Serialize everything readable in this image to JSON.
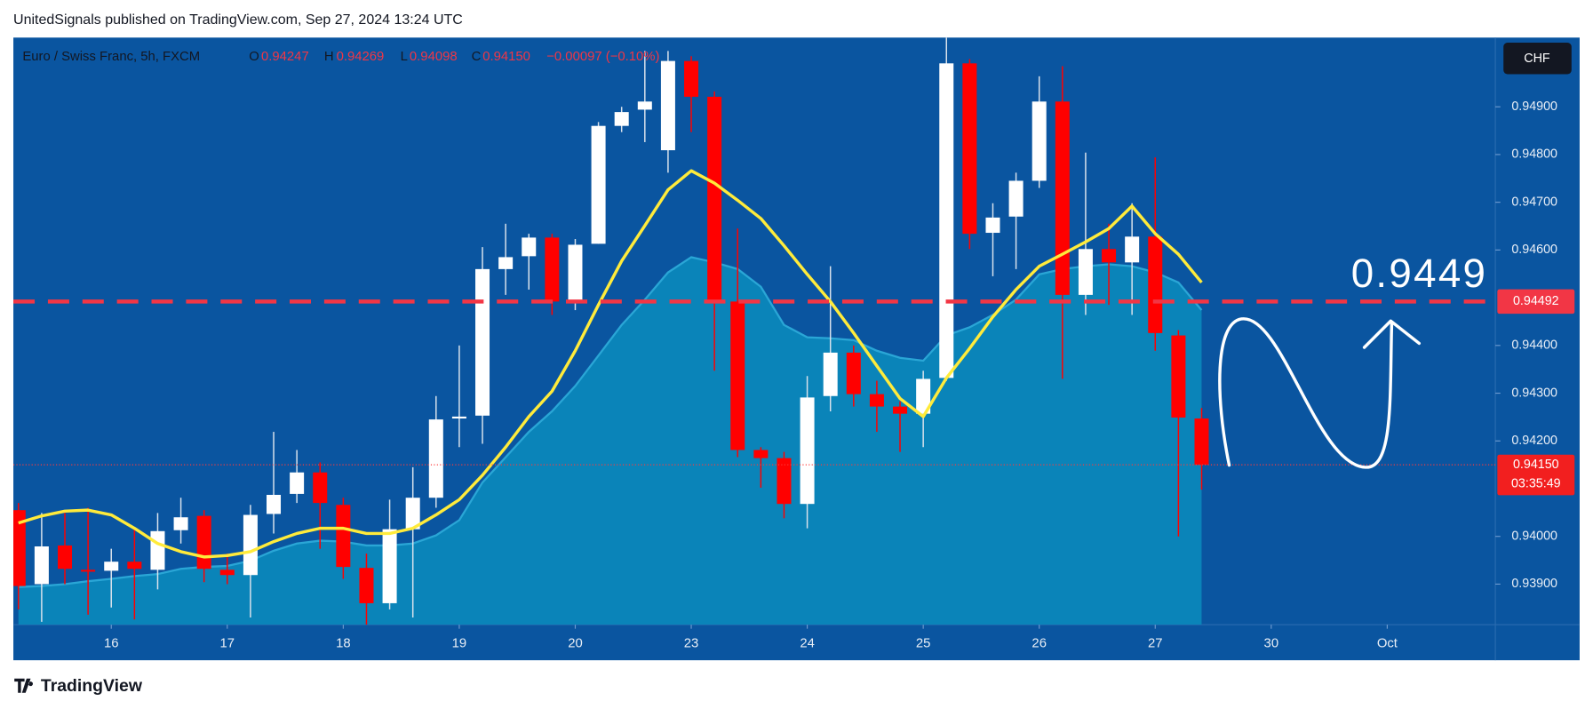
{
  "header": "UnitedSignals published on TradingView.com, Sep 27, 2024 13:24 UTC",
  "footer": "TradingView",
  "chart_data": {
    "type": "candlestick",
    "title": "Euro / Swiss Franc, 5h, FXCM",
    "last_bar": {
      "labels": [
        "O",
        "H",
        "L",
        "C"
      ],
      "value_labels": [
        "0.94247",
        "0.94269",
        "0.94098",
        "0.94150"
      ]
    },
    "change": "−0.00097 (−0.10%)",
    "currency": "CHF",
    "countdown": "03:35:49",
    "annotation": "0.9449",
    "up_color": "#ffffff",
    "down_color": "#ff0000",
    "open": [
      0.94055,
      0.939,
      0.93981,
      0.9393,
      0.93928,
      0.93947,
      0.9393,
      0.94013,
      0.94043,
      0.9393,
      0.93919,
      0.94047,
      0.94089,
      0.94134,
      0.94066,
      0.93934,
      0.9386,
      0.94015,
      0.94081,
      0.94247,
      0.94253,
      0.9456,
      0.94587,
      0.94626,
      0.94494,
      0.94613,
      0.9486,
      0.94894,
      0.94809,
      0.94996,
      0.94921,
      0.94492,
      0.94181,
      0.94164,
      0.94068,
      0.94294,
      0.94385,
      0.94298,
      0.94272,
      0.94257,
      0.94332,
      0.94991,
      0.94636,
      0.9467,
      0.94745,
      0.94911,
      0.94506,
      0.94602,
      0.94574,
      0.94628,
      0.94421,
      0.94247
    ],
    "high": [
      0.9407,
      0.94049,
      0.94049,
      0.9406,
      0.93974,
      0.94017,
      0.94049,
      0.94081,
      0.94055,
      0.93964,
      0.94066,
      0.94219,
      0.94181,
      0.94155,
      0.94081,
      0.93964,
      0.94077,
      0.94145,
      0.94294,
      0.944,
      0.94606,
      0.94655,
      0.94634,
      0.94634,
      0.94623,
      0.94868,
      0.949,
      0.95017,
      0.95017,
      0.95006,
      0.94932,
      0.94645,
      0.94187,
      0.94177,
      0.94336,
      0.94566,
      0.944,
      0.94326,
      0.94283,
      0.94347,
      0.95045,
      0.95,
      0.94698,
      0.94762,
      0.94964,
      0.94985,
      0.94804,
      0.94655,
      0.94698,
      0.94794,
      0.94432,
      0.94269
    ],
    "low": [
      0.93847,
      0.93821,
      0.939,
      0.93836,
      0.93851,
      0.93826,
      0.93889,
      0.93985,
      0.93904,
      0.939,
      0.9383,
      0.94006,
      0.9407,
      0.93974,
      0.93911,
      0.93815,
      0.93847,
      0.9383,
      0.9406,
      0.94187,
      0.94194,
      0.94506,
      0.94517,
      0.94464,
      0.94474,
      0.94613,
      0.94847,
      0.94826,
      0.94762,
      0.94847,
      0.94347,
      0.94166,
      0.94102,
      0.94038,
      0.94017,
      0.94262,
      0.94272,
      0.94219,
      0.94177,
      0.94187,
      0.94326,
      0.94602,
      0.94545,
      0.9456,
      0.9473,
      0.9433,
      0.94464,
      0.94485,
      0.94464,
      0.94389,
      0.94,
      0.94098
    ],
    "close": [
      0.93896,
      0.93979,
      0.93932,
      0.93926,
      0.93947,
      0.93932,
      0.94011,
      0.9404,
      0.93932,
      0.93919,
      0.94045,
      0.94087,
      0.94134,
      0.9407,
      0.93936,
      0.9386,
      0.94015,
      0.94081,
      0.94245,
      0.94251,
      0.9456,
      0.94585,
      0.94626,
      0.94492,
      0.94611,
      0.9486,
      0.94889,
      0.94911,
      0.94996,
      0.94921,
      0.94492,
      0.94181,
      0.94164,
      0.94068,
      0.94291,
      0.94385,
      0.94298,
      0.94272,
      0.94257,
      0.9433,
      0.94991,
      0.94634,
      0.94668,
      0.94745,
      0.94911,
      0.94506,
      0.94602,
      0.94574,
      0.94628,
      0.94426,
      0.94249,
      0.9415
    ],
    "series": [
      {
        "style": "area",
        "color": "#0b87ba",
        "values": [
          0.93894,
          0.93896,
          0.939,
          0.93906,
          0.93911,
          0.93917,
          0.93921,
          0.93932,
          0.93936,
          0.93938,
          0.93949,
          0.9397,
          0.93985,
          0.93991,
          0.93989,
          0.93981,
          0.93981,
          0.93985,
          0.94002,
          0.94034,
          0.94113,
          0.94166,
          0.94219,
          0.94262,
          0.94315,
          0.94379,
          0.94443,
          0.94496,
          0.94553,
          0.94585,
          0.94574,
          0.9456,
          0.94523,
          0.94443,
          0.94417,
          0.94415,
          0.94411,
          0.94389,
          0.94374,
          0.94368,
          0.94421,
          0.94438,
          0.94464,
          0.94496,
          0.94549,
          0.9456,
          0.94566,
          0.9457,
          0.94566,
          0.94553,
          0.94532,
          0.94474
        ]
      },
      {
        "style": "line",
        "color": "#ffeb3b",
        "values": [
          0.94028,
          0.94043,
          0.94053,
          0.94055,
          0.94045,
          0.94017,
          0.93985,
          0.93968,
          0.93957,
          0.9396,
          0.93968,
          0.93989,
          0.94006,
          0.94017,
          0.94017,
          0.94006,
          0.94006,
          0.94017,
          0.94045,
          0.94077,
          0.94128,
          0.94187,
          0.94251,
          0.94304,
          0.94389,
          0.94485,
          0.94577,
          0.94651,
          0.94726,
          0.94766,
          0.9474,
          0.94704,
          0.94666,
          0.94609,
          0.94549,
          0.94492,
          0.94426,
          0.94357,
          0.94289,
          0.94251,
          0.94332,
          0.94394,
          0.9446,
          0.94517,
          0.94566,
          0.94591,
          0.94617,
          0.94645,
          0.94692,
          0.94634,
          0.94591,
          0.94532
        ]
      }
    ],
    "price_line": {
      "value": 0.94492,
      "color": "#f23645"
    },
    "xlim": [
      -0.22,
      63.66
    ],
    "xticks": [
      {
        "value": 4,
        "label": "16"
      },
      {
        "value": 9,
        "label": "17"
      },
      {
        "value": 14,
        "label": "18"
      },
      {
        "value": 19,
        "label": "19"
      },
      {
        "value": 24,
        "label": "20"
      },
      {
        "value": 29,
        "label": "23"
      },
      {
        "value": 34,
        "label": "24"
      },
      {
        "value": 39,
        "label": "25"
      },
      {
        "value": 44,
        "label": "26"
      },
      {
        "value": 49,
        "label": "27"
      },
      {
        "value": 54,
        "label": "30"
      },
      {
        "value": 59,
        "label": "Oct"
      }
    ],
    "ylim": [
      0.93815,
      0.95045
    ],
    "yticks": [
      {
        "value": 0.939,
        "label": "0.93900"
      },
      {
        "value": 0.94,
        "label": "0.94000"
      },
      {
        "value": 0.942,
        "label": "0.94200"
      },
      {
        "value": 0.943,
        "label": "0.94300"
      },
      {
        "value": 0.944,
        "label": "0.94400"
      },
      {
        "value": 0.946,
        "label": "0.94600"
      },
      {
        "value": 0.947,
        "label": "0.94700"
      },
      {
        "value": 0.948,
        "label": "0.94800"
      },
      {
        "value": 0.949,
        "label": "0.94900"
      }
    ],
    "grid": false
  }
}
